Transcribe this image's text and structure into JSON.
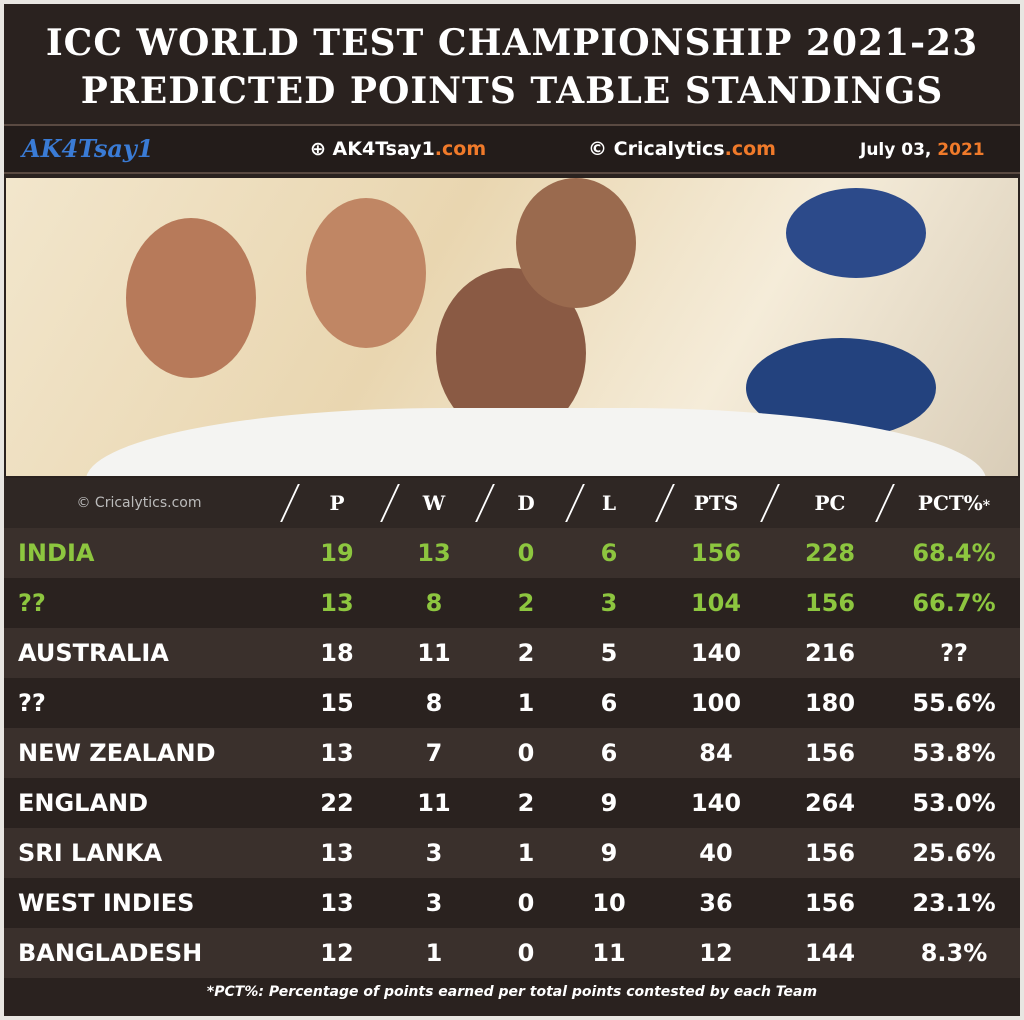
{
  "header": {
    "title_lines": [
      "ICC WORLD TEST CHAMPIONSHIP 2021-23",
      "PREDICTED POINTS TABLE STANDINGS"
    ]
  },
  "subheader": {
    "logo": "AK4Tsay1",
    "site": {
      "name": "AK4Tsay1",
      "suffix": ".com"
    },
    "credit": {
      "symbol": "©",
      "name": "Cricalytics",
      "suffix": ".com"
    },
    "date": {
      "day": "July 03,",
      "year": "2021"
    }
  },
  "table": {
    "watermark": "© Cricalytics.com",
    "columns": [
      "P",
      "W",
      "D",
      "L",
      "PTS",
      "PC",
      "PCT%"
    ],
    "pct_mark": "*",
    "rows": [
      [
        "INDIA",
        19,
        13,
        0,
        6,
        156,
        228,
        "68.4%"
      ],
      [
        "??",
        13,
        8,
        2,
        3,
        104,
        156,
        "66.7%"
      ],
      [
        "AUSTRALIA",
        18,
        11,
        2,
        5,
        140,
        216,
        "??"
      ],
      [
        "??",
        15,
        8,
        1,
        6,
        100,
        180,
        "55.6%"
      ],
      [
        "NEW ZEALAND",
        13,
        7,
        0,
        6,
        84,
        156,
        "53.8%"
      ],
      [
        "ENGLAND",
        22,
        11,
        2,
        9,
        140,
        264,
        "53.0%"
      ],
      [
        "SRI LANKA",
        13,
        3,
        1,
        9,
        40,
        156,
        "25.6%"
      ],
      [
        "WEST INDIES",
        13,
        3,
        0,
        10,
        36,
        156,
        "23.1%"
      ],
      [
        "BANGLADESH",
        12,
        1,
        0,
        11,
        12,
        144,
        "8.3%"
      ]
    ]
  },
  "footnote": "*PCT%: Percentage of points earned per total points contested by each Team"
}
